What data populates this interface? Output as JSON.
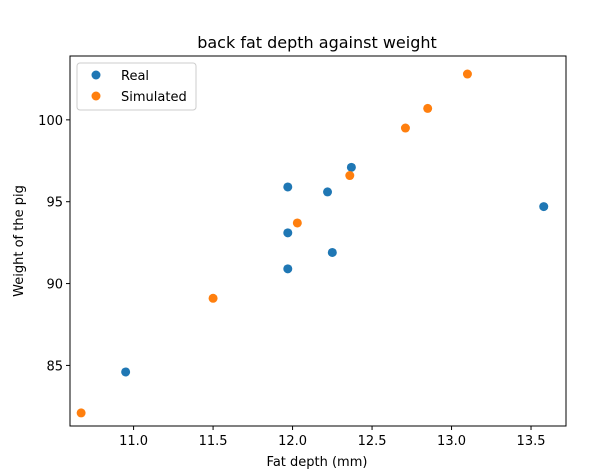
{
  "chart_data": {
    "type": "scatter",
    "title": "back fat depth against weight",
    "xlabel": "Fat depth (mm)",
    "ylabel": "Weight of the pig",
    "xlim": [
      10.6,
      13.72
    ],
    "ylim": [
      81.3,
      103.9
    ],
    "xticks": [
      "11.0",
      "11.5",
      "12.0",
      "12.5",
      "13.0",
      "13.5"
    ],
    "yticks": [
      "85",
      "90",
      "95",
      "100"
    ],
    "grid": false,
    "legend_position": "upper-left",
    "series": [
      {
        "name": "Real",
        "color": "#1f77b4",
        "points": [
          {
            "x": 10.95,
            "y": 84.6
          },
          {
            "x": 11.97,
            "y": 90.9
          },
          {
            "x": 11.97,
            "y": 93.1
          },
          {
            "x": 11.97,
            "y": 95.9
          },
          {
            "x": 12.22,
            "y": 95.6
          },
          {
            "x": 12.25,
            "y": 91.9
          },
          {
            "x": 12.37,
            "y": 97.1
          },
          {
            "x": 13.58,
            "y": 94.7
          }
        ]
      },
      {
        "name": "Simulated",
        "color": "#ff7f0e",
        "points": [
          {
            "x": 10.67,
            "y": 82.1
          },
          {
            "x": 11.5,
            "y": 89.1
          },
          {
            "x": 12.03,
            "y": 93.7
          },
          {
            "x": 12.36,
            "y": 96.6
          },
          {
            "x": 12.71,
            "y": 99.5
          },
          {
            "x": 12.85,
            "y": 100.7
          },
          {
            "x": 13.1,
            "y": 102.8
          }
        ]
      }
    ]
  }
}
